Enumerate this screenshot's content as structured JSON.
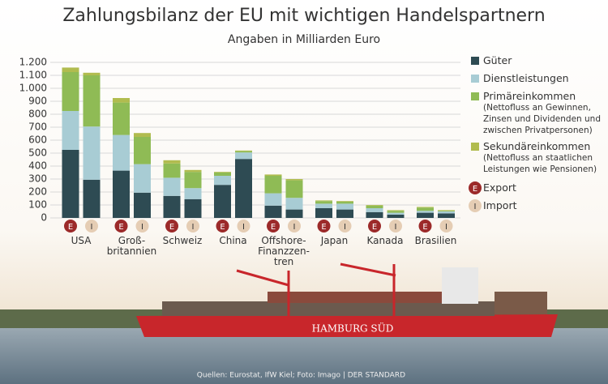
{
  "chart_data": {
    "type": "stacked_bar",
    "title": "Zahlungsbilanz der EU mit wichtigen Handelspartnern",
    "subtitle": "Angaben in Milliarden Euro",
    "group_labels": [
      "USA",
      "Groß-\nbritannien",
      "Schweiz",
      "China",
      "Offshore-\nFinanzzen-\ntren",
      "Japan",
      "Kanada",
      "Brasilien"
    ],
    "categories": [
      "E",
      "I",
      "E",
      "I",
      "E",
      "I",
      "E",
      "I",
      "E",
      "I",
      "E",
      "I",
      "E",
      "I",
      "E",
      "I"
    ],
    "bar_keys": [
      {
        "symbol": "E",
        "label": "Export"
      },
      {
        "symbol": "I",
        "label": "Import"
      }
    ],
    "series": [
      {
        "name": "Güter",
        "color": "#2e4b53",
        "values": [
          525,
          295,
          365,
          195,
          170,
          145,
          255,
          455,
          95,
          65,
          75,
          65,
          45,
          25,
          40,
          35
        ]
      },
      {
        "name": "Dienstleistungen",
        "color": "#a8ccd4",
        "values": [
          300,
          410,
          275,
          220,
          140,
          85,
          70,
          50,
          95,
          90,
          35,
          45,
          30,
          15,
          15,
          15
        ]
      },
      {
        "name": "Primäreinkommen",
        "note": "(Nettofluss an Gewinnen, Zinsen und Dividenden und zwischen Privatpersonen)",
        "color": "#8fbb55",
        "values": [
          300,
          395,
          250,
          210,
          110,
          125,
          25,
          10,
          135,
          135,
          20,
          15,
          20,
          15,
          25,
          5
        ]
      },
      {
        "name": "Sekundäreinkommen",
        "note": "(Nettofluss an staatlichen Leistungen wie Pensionen)",
        "color": "#b1bc4f",
        "values": [
          35,
          20,
          35,
          30,
          25,
          15,
          5,
          5,
          10,
          10,
          5,
          5,
          5,
          5,
          5,
          5
        ]
      }
    ],
    "ylim": [
      0,
      1200
    ],
    "yticks": [
      0,
      100,
      200,
      300,
      400,
      500,
      600,
      700,
      800,
      900,
      {
        "value": 1000,
        "label": "1.000"
      },
      {
        "value": 1100,
        "label": "1.100"
      },
      {
        "value": 1200,
        "label": "1.200"
      }
    ],
    "grid": true,
    "ship_name": "HAMBURG SÜD",
    "source": "Quellen: Eurostat, IfW Kiel; Foto: Imago | DER STANDARD"
  }
}
